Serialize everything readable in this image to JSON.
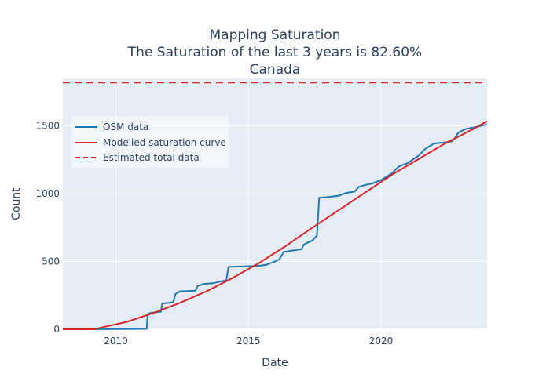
{
  "chart_data": {
    "type": "line",
    "title": [
      "Mapping Saturation",
      "The Saturation of the last 3 years is 82.60%",
      "Canada"
    ],
    "xlabel": "Date",
    "ylabel": "Count",
    "xlim": [
      "2008-01-01",
      "2024-01-01"
    ],
    "ylim": [
      0,
      1850
    ],
    "x_ticks": [
      2010,
      2015,
      2020
    ],
    "y_ticks": [
      0,
      500,
      1000,
      1500
    ],
    "grid": true,
    "legend_position": "top-left",
    "series": [
      {
        "name": "OSM data",
        "color": "#1f77b4",
        "style": "solid",
        "points": [
          [
            "2008-01-01",
            0
          ],
          [
            "2009-01-01",
            0
          ],
          [
            "2010-01-01",
            2
          ],
          [
            "2011-03-01",
            3
          ],
          [
            "2011-03-15",
            110
          ],
          [
            "2011-04-15",
            120
          ],
          [
            "2011-09-15",
            130
          ],
          [
            "2011-10-01",
            190
          ],
          [
            "2012-01-01",
            195
          ],
          [
            "2012-03-01",
            200
          ],
          [
            "2012-04-01",
            260
          ],
          [
            "2012-06-01",
            280
          ],
          [
            "2013-01-01",
            285
          ],
          [
            "2013-02-01",
            320
          ],
          [
            "2013-05-01",
            335
          ],
          [
            "2013-09-01",
            340
          ],
          [
            "2014-01-01",
            355
          ],
          [
            "2014-03-01",
            360
          ],
          [
            "2014-04-01",
            460
          ],
          [
            "2014-07-01",
            462
          ],
          [
            "2015-01-01",
            465
          ],
          [
            "2015-06-01",
            468
          ],
          [
            "2015-09-01",
            475
          ],
          [
            "2016-01-01",
            500
          ],
          [
            "2016-03-01",
            515
          ],
          [
            "2016-05-01",
            570
          ],
          [
            "2016-07-01",
            575
          ],
          [
            "2017-01-01",
            590
          ],
          [
            "2017-02-01",
            625
          ],
          [
            "2017-04-01",
            640
          ],
          [
            "2017-06-01",
            655
          ],
          [
            "2017-08-01",
            690
          ],
          [
            "2017-09-01",
            970
          ],
          [
            "2018-01-01",
            975
          ],
          [
            "2018-06-01",
            985
          ],
          [
            "2018-09-01",
            1005
          ],
          [
            "2019-01-01",
            1015
          ],
          [
            "2019-03-01",
            1050
          ],
          [
            "2019-06-01",
            1065
          ],
          [
            "2019-09-01",
            1075
          ],
          [
            "2020-01-01",
            1100
          ],
          [
            "2020-06-01",
            1150
          ],
          [
            "2020-09-01",
            1200
          ],
          [
            "2021-01-01",
            1225
          ],
          [
            "2021-06-01",
            1280
          ],
          [
            "2021-09-01",
            1330
          ],
          [
            "2022-01-01",
            1370
          ],
          [
            "2022-06-01",
            1378
          ],
          [
            "2022-09-01",
            1385
          ],
          [
            "2022-10-15",
            1410
          ],
          [
            "2022-12-01",
            1450
          ],
          [
            "2023-03-01",
            1475
          ],
          [
            "2023-06-01",
            1485
          ],
          [
            "2023-09-01",
            1495
          ],
          [
            "2024-01-01",
            1510
          ]
        ]
      },
      {
        "name": "Modelled saturation curve",
        "color": "#d62728",
        "style": "solid",
        "points": [
          [
            "2008-01-01",
            0
          ],
          [
            "2009-03-01",
            0
          ],
          [
            "2010-06-01",
            55
          ],
          [
            "2011-06-01",
            120
          ],
          [
            "2012-06-01",
            195
          ],
          [
            "2013-06-01",
            280
          ],
          [
            "2014-06-01",
            380
          ],
          [
            "2015-06-01",
            490
          ],
          [
            "2016-06-01",
            615
          ],
          [
            "2017-06-01",
            750
          ],
          [
            "2018-06-01",
            880
          ],
          [
            "2019-06-01",
            1010
          ],
          [
            "2020-06-01",
            1140
          ],
          [
            "2021-06-01",
            1255
          ],
          [
            "2022-06-01",
            1370
          ],
          [
            "2023-06-01",
            1470
          ],
          [
            "2024-01-01",
            1535
          ]
        ]
      },
      {
        "name": "Estimated total data",
        "color": "#d62728",
        "style": "dashed",
        "points": [
          [
            "2008-01-01",
            1820
          ],
          [
            "2024-01-01",
            1820
          ]
        ]
      }
    ]
  }
}
